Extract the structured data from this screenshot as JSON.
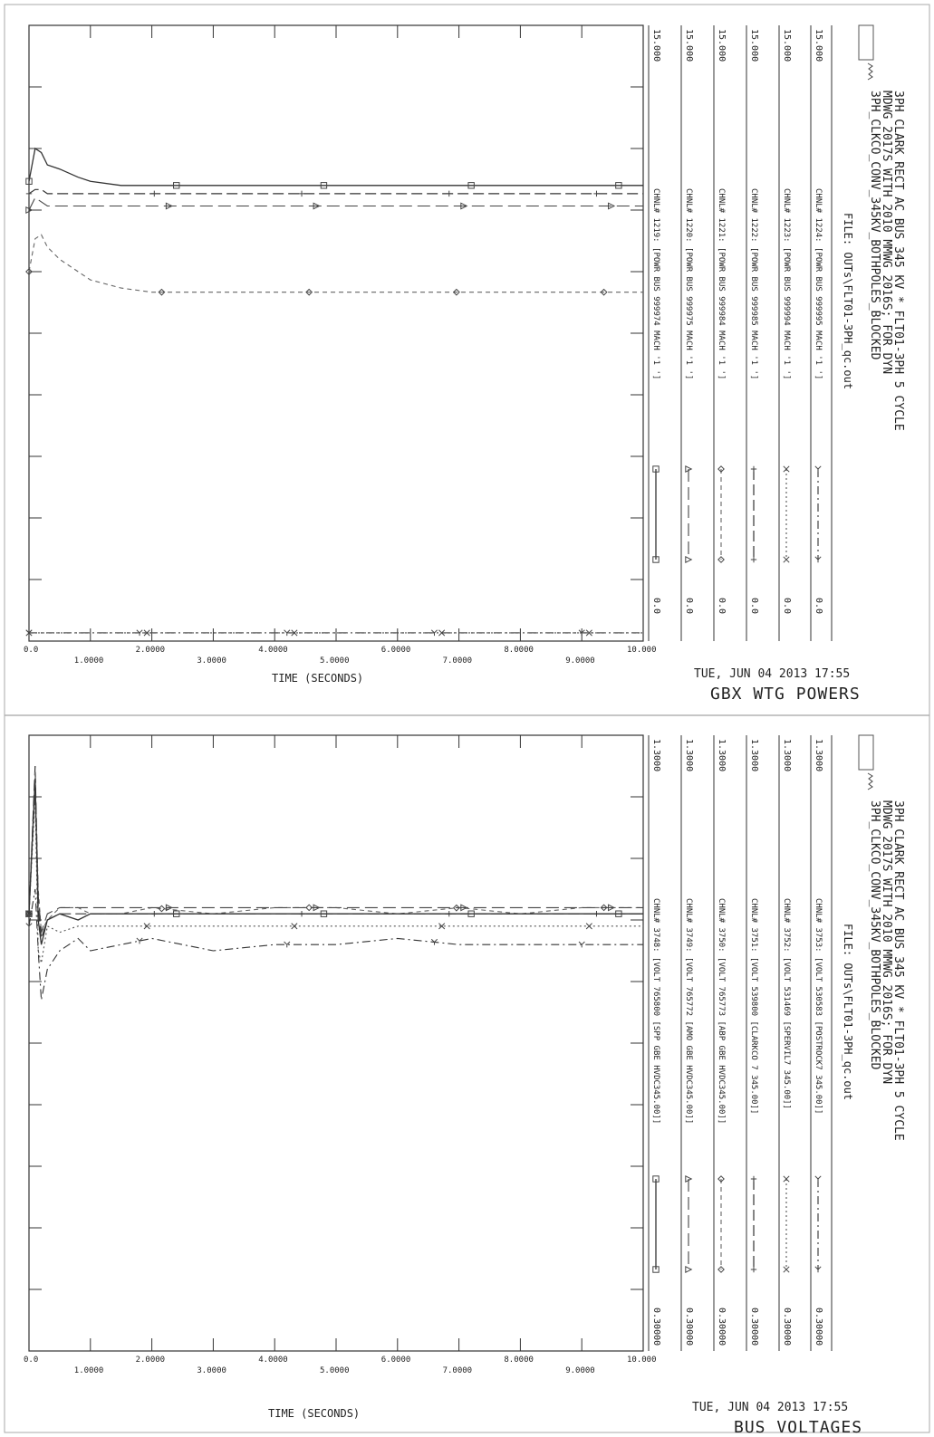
{
  "charts": [
    {
      "id": "powers",
      "header_lines": [
        "3PH CLARK RECT AC BUS 345 KV * FLT01-3PH 5 CYCLE",
        "MDWG 2017S WITH 2010 MMWG 2016S; FOR DYN",
        "3PH_CLKCO_CONV_345KV_BOTHPOLES_BLOCKED"
      ],
      "file_label": "FILE: OUTs\\FLT01-3PH_qc.out",
      "date_label": "TUE, JUN 04 2013   17:55",
      "title": "GBX WTG POWERS",
      "xlabel": "TIME  (SECONDS)",
      "channels": [
        {
          "label": "CHNL# 1224: [POWR BUS 999995 MACH '1 ']",
          "min": "0.0",
          "max": "15.000",
          "marker": "y"
        },
        {
          "label": "CHNL# 1223: [POWR BUS 999994 MACH '1 ']",
          "min": "0.0",
          "max": "15.000",
          "marker": "x"
        },
        {
          "label": "CHNL# 1222: [POWR BUS 999985 MACH '1 ']",
          "min": "0.0",
          "max": "15.000",
          "marker": "+"
        },
        {
          "label": "CHNL# 1221: [POWR BUS 999984 MACH '1 ']",
          "min": "0.0",
          "max": "15.000",
          "marker": "diamond"
        },
        {
          "label": "CHNL# 1220: [POWR BUS 999975 MACH '1 ']",
          "min": "0.0",
          "max": "15.000",
          "marker": "triangle"
        },
        {
          "label": "CHNL# 1219: [POWR BUS 999974 MACH '1 ']",
          "min": "0.0",
          "max": "15.000",
          "marker": "square"
        }
      ]
    },
    {
      "id": "voltages",
      "header_lines": [
        "3PH CLARK RECT AC BUS 345 KV * FLT01-3PH 5 CYCLE",
        "MDWG 2017S WITH 2010 MMWG 2016S; FOR DYN",
        "3PH_CLKCO_CONV_345KV_BOTHPOLES_BLOCKED"
      ],
      "file_label": "FILE: OUTs\\FLT01-3PH_qc.out",
      "date_label": "TUE, JUN 04 2013   17:55",
      "title": "BUS VOLTAGES",
      "xlabel": "TIME  (SECONDS)",
      "channels": [
        {
          "label": "CHNL# 3753: [VOLT 530583 [POSTROCK7   345.00]]",
          "min": "0.30000",
          "max": "1.3000",
          "marker": "y"
        },
        {
          "label": "CHNL# 3752: [VOLT 531469 [SPERVIL7    345.00]]",
          "min": "0.30000",
          "max": "1.3000",
          "marker": "x"
        },
        {
          "label": "CHNL# 3751: [VOLT 539800 [CLARKCO 7   345.00]]",
          "min": "0.30000",
          "max": "1.3000",
          "marker": "+"
        },
        {
          "label": "CHNL# 3750: [VOLT 765773 [ABP GBE HVDC345.00]]",
          "min": "0.30000",
          "max": "1.3000",
          "marker": "diamond"
        },
        {
          "label": "CHNL# 3749: [VOLT 765772 [AMO GBE HVDC345.00]]",
          "min": "0.30000",
          "max": "1.3000",
          "marker": "triangle"
        },
        {
          "label": "CHNL# 3748: [VOLT 765800 [SPP GBE HVDC345.00]]",
          "min": "0.30000",
          "max": "1.3000",
          "marker": "square"
        }
      ]
    }
  ],
  "chart_data": [
    {
      "type": "line",
      "title": "GBX WTG POWERS",
      "xlabel": "TIME  (SECONDS)",
      "xlim": [
        0,
        10
      ],
      "ylim": [
        0,
        15
      ],
      "x_tick_labels": [
        "0.0",
        "1.0000",
        "2.0000",
        "3.0000",
        "4.0000",
        "5.0000",
        "6.0000",
        "7.0000",
        "8.0000",
        "9.0000",
        "10.000"
      ],
      "x": [
        0,
        0.1,
        0.2,
        0.3,
        0.5,
        0.8,
        1.0,
        1.5,
        2.0,
        3.0,
        4.0,
        5.0,
        6.0,
        7.0,
        8.0,
        9.0,
        10.0
      ],
      "series": [
        {
          "name": "CHNL# 1224: [POWR BUS 999995 MACH '1 ']",
          "values": [
            0.2,
            0.2,
            0.2,
            0.2,
            0.2,
            0.2,
            0.2,
            0.2,
            0.2,
            0.2,
            0.2,
            0.2,
            0.2,
            0.2,
            0.2,
            0.2,
            0.2
          ]
        },
        {
          "name": "CHNL# 1223: [POWR BUS 999994 MACH '1 ']",
          "values": [
            0.2,
            0.2,
            0.2,
            0.2,
            0.2,
            0.2,
            0.2,
            0.2,
            0.2,
            0.2,
            0.2,
            0.2,
            0.2,
            0.2,
            0.2,
            0.2,
            0.2
          ]
        },
        {
          "name": "CHNL# 1222: [POWR BUS 999985 MACH '1 ']",
          "values": [
            10.9,
            11.0,
            11.0,
            10.9,
            10.9,
            10.9,
            10.9,
            10.9,
            10.9,
            10.9,
            10.9,
            10.9,
            10.9,
            10.9,
            10.9,
            10.9,
            10.9
          ]
        },
        {
          "name": "CHNL# 1221: [POWR BUS 999984 MACH '1 ']",
          "values": [
            9.0,
            9.8,
            9.9,
            9.6,
            9.3,
            9.0,
            8.8,
            8.6,
            8.5,
            8.5,
            8.5,
            8.5,
            8.5,
            8.5,
            8.5,
            8.5,
            8.5
          ]
        },
        {
          "name": "CHNL# 1220: [POWR BUS 999975 MACH '1 ']",
          "values": [
            10.5,
            10.8,
            10.7,
            10.6,
            10.6,
            10.6,
            10.6,
            10.6,
            10.6,
            10.6,
            10.6,
            10.6,
            10.6,
            10.6,
            10.6,
            10.6,
            10.6
          ]
        },
        {
          "name": "CHNL# 1219: [POWR BUS 999974 MACH '1 ']",
          "values": [
            11.2,
            12.0,
            11.9,
            11.6,
            11.5,
            11.3,
            11.2,
            11.1,
            11.1,
            11.1,
            11.1,
            11.1,
            11.1,
            11.1,
            11.1,
            11.1,
            11.1
          ]
        }
      ]
    },
    {
      "type": "line",
      "title": "BUS VOLTAGES",
      "xlabel": "TIME  (SECONDS)",
      "xlim": [
        0,
        10
      ],
      "ylim": [
        0.3,
        1.3
      ],
      "x_tick_labels": [
        "0.0",
        "1.0000",
        "2.0000",
        "3.0000",
        "4.0000",
        "5.0000",
        "6.0000",
        "7.0000",
        "8.0000",
        "9.0000",
        "10.000"
      ],
      "x": [
        0,
        0.1,
        0.15,
        0.2,
        0.3,
        0.5,
        0.8,
        1.0,
        1.5,
        2.0,
        3.0,
        4.0,
        5.0,
        6.0,
        7.0,
        8.0,
        9.0,
        10.0
      ],
      "series": [
        {
          "name": "CHNL# 3753: [VOLT 530583 [POSTROCK7   345.00]]",
          "values": [
            0.99,
            1.05,
            0.95,
            0.87,
            0.92,
            0.95,
            0.97,
            0.95,
            0.96,
            0.97,
            0.95,
            0.96,
            0.96,
            0.97,
            0.96,
            0.96,
            0.96,
            0.96
          ]
        },
        {
          "name": "CHNL# 3752: [VOLT 531469 [SPERVIL7    345.00]]",
          "values": [
            1.01,
            1.2,
            0.95,
            0.93,
            0.99,
            0.98,
            0.99,
            0.99,
            0.99,
            0.99,
            0.99,
            0.99,
            0.99,
            0.99,
            0.99,
            0.99,
            0.99,
            0.99
          ]
        },
        {
          "name": "CHNL# 3751: [VOLT 539800 [CLARKCO 7   345.00]]",
          "values": [
            1.01,
            1.25,
            1.02,
            0.97,
            1.0,
            1.01,
            1.01,
            1.01,
            1.01,
            1.01,
            1.01,
            1.01,
            1.01,
            1.01,
            1.01,
            1.01,
            1.01,
            1.01
          ]
        },
        {
          "name": "CHNL# 3750: [VOLT 765773 [ABP GBE HVDC345.00]]",
          "values": [
            1.01,
            1.24,
            1.05,
            0.98,
            1.0,
            1.02,
            1.02,
            1.01,
            1.01,
            1.02,
            1.01,
            1.02,
            1.02,
            1.01,
            1.02,
            1.01,
            1.02,
            1.02
          ]
        },
        {
          "name": "CHNL# 3749: [VOLT 765772 [AMO GBE HVDC345.00]]",
          "values": [
            1.01,
            1.22,
            1.04,
            0.98,
            1.01,
            1.02,
            1.02,
            1.02,
            1.02,
            1.02,
            1.02,
            1.02,
            1.02,
            1.02,
            1.02,
            1.02,
            1.02,
            1.02
          ]
        },
        {
          "name": "CHNL# 3748: [VOLT 765800 [SPP GBE HVDC345.00]]",
          "values": [
            1.01,
            1.23,
            1.0,
            0.96,
            1.0,
            1.01,
            1.0,
            1.01,
            1.01,
            1.01,
            1.01,
            1.01,
            1.01,
            1.01,
            1.01,
            1.01,
            1.01,
            1.01
          ]
        }
      ]
    }
  ]
}
